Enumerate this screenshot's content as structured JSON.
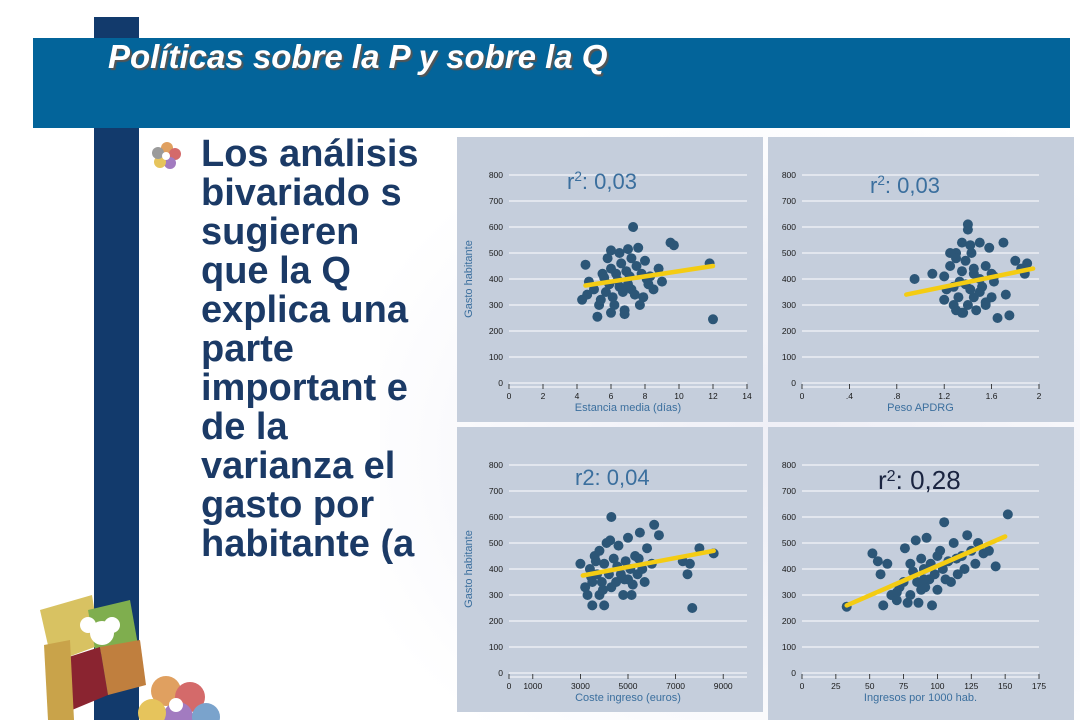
{
  "slide": {
    "title": "Políticas sobre la P y sobre la Q",
    "body": "Los análisis bivariado s sugieren que la Q explica una parte important e de la varianza el gasto por habitante (a"
  },
  "colors": {
    "header": "#03649a",
    "sidebar": "#123a6c",
    "panel": "#c5cedc",
    "point": "#2c5677",
    "fit": "#f4cc13"
  },
  "chart_data": [
    {
      "type": "scatter",
      "title": "r²: 0,03",
      "xlabel": "Estancia media (días)",
      "ylabel": "Gasto habitante",
      "xlim": [
        0,
        14
      ],
      "ylim": [
        0,
        800
      ],
      "xticks": [
        "0",
        "2",
        "4",
        "6",
        "8",
        "10",
        "12",
        "14"
      ],
      "yticks": [
        "0",
        "100",
        "200",
        "300",
        "400",
        "500",
        "600",
        "700",
        "800"
      ],
      "grid": true,
      "fit": {
        "x": [
          4.5,
          12.0
        ],
        "y": [
          375,
          450
        ]
      },
      "points": {
        "x": [
          4.3,
          4.5,
          4.6,
          4.7,
          5.0,
          5.2,
          5.3,
          5.5,
          5.6,
          5.7,
          5.8,
          5.9,
          6.0,
          6.0,
          6.1,
          6.2,
          6.3,
          6.4,
          6.5,
          6.5,
          6.6,
          6.7,
          6.8,
          6.9,
          7.0,
          7.0,
          7.1,
          7.2,
          7.3,
          7.4,
          7.5,
          7.6,
          7.7,
          7.8,
          7.9,
          8.0,
          8.1,
          8.3,
          8.5,
          8.8,
          9.0,
          9.5,
          9.7,
          11.8,
          12.0,
          5.4,
          6.8,
          7.2,
          6.0,
          8.2
        ],
        "y": [
          320,
          455,
          340,
          390,
          360,
          255,
          300,
          420,
          405,
          350,
          480,
          380,
          440,
          510,
          330,
          300,
          420,
          395,
          500,
          370,
          460,
          350,
          280,
          430,
          380,
          515,
          410,
          360,
          600,
          340,
          450,
          520,
          300,
          420,
          330,
          470,
          400,
          410,
          360,
          440,
          390,
          540,
          530,
          460,
          245,
          320,
          265,
          480,
          270,
          380
        ]
      }
    },
    {
      "type": "scatter",
      "title": "r²: 0,03",
      "xlabel": "Peso APDRG",
      "ylabel": "",
      "xlim": [
        0,
        2
      ],
      "ylim": [
        0,
        800
      ],
      "xticks": [
        "0",
        ".4",
        ".8",
        "1.2",
        "1.6",
        "2"
      ],
      "yticks": [
        "0",
        "100",
        "200",
        "300",
        "400",
        "500",
        "600",
        "700",
        "800"
      ],
      "grid": true,
      "fit": {
        "x": [
          0.88,
          1.95
        ],
        "y": [
          340,
          440
        ]
      },
      "points": {
        "x": [
          0.95,
          1.1,
          1.2,
          1.22,
          1.25,
          1.28,
          1.3,
          1.3,
          1.32,
          1.33,
          1.35,
          1.35,
          1.36,
          1.38,
          1.38,
          1.4,
          1.4,
          1.42,
          1.43,
          1.45,
          1.45,
          1.47,
          1.5,
          1.5,
          1.52,
          1.55,
          1.55,
          1.58,
          1.6,
          1.62,
          1.65,
          1.7,
          1.72,
          1.75,
          1.8,
          1.85,
          1.88,
          1.9,
          1.2,
          1.3,
          1.4,
          1.5,
          1.6,
          1.25,
          1.35,
          1.45,
          1.55,
          1.28,
          1.42,
          1.62
        ],
        "y": [
          400,
          420,
          410,
          360,
          450,
          300,
          280,
          500,
          330,
          390,
          540,
          430,
          270,
          380,
          470,
          610,
          300,
          360,
          500,
          420,
          330,
          280,
          540,
          400,
          370,
          450,
          300,
          520,
          330,
          410,
          250,
          540,
          340,
          260,
          470,
          440,
          420,
          460,
          320,
          480,
          590,
          350,
          420,
          500,
          270,
          440,
          310,
          370,
          530,
          390
        ]
      }
    },
    {
      "type": "scatter",
      "title": "r2: 0,04",
      "xlabel": "Coste ingreso (euros)",
      "ylabel": "Gasto habitante",
      "xlim": [
        0,
        10000
      ],
      "ylim": [
        0,
        800
      ],
      "xticks": [
        "0",
        "1000",
        "3000",
        "5000",
        "7000",
        "9000"
      ],
      "yticks": [
        "0",
        "100",
        "200",
        "300",
        "400",
        "500",
        "600",
        "700",
        "800"
      ],
      "grid": true,
      "fit": {
        "x": [
          3100,
          8600
        ],
        "y": [
          375,
          470
        ]
      },
      "points": {
        "x": [
          3000,
          3200,
          3300,
          3400,
          3500,
          3500,
          3600,
          3700,
          3800,
          3800,
          3900,
          4000,
          4000,
          4100,
          4200,
          4300,
          4300,
          4400,
          4500,
          4600,
          4700,
          4800,
          4900,
          5000,
          5000,
          5100,
          5200,
          5300,
          5400,
          5500,
          5600,
          5700,
          5800,
          6000,
          6100,
          6300,
          7300,
          7500,
          7600,
          7700,
          8000,
          8600,
          3450,
          3650,
          3950,
          4250,
          4550,
          4850,
          5150,
          5450
        ],
        "y": [
          420,
          330,
          300,
          400,
          350,
          260,
          450,
          380,
          300,
          470,
          350,
          420,
          260,
          500,
          380,
          330,
          600,
          440,
          350,
          490,
          380,
          300,
          430,
          360,
          520,
          400,
          340,
          450,
          380,
          540,
          400,
          350,
          480,
          420,
          570,
          530,
          430,
          380,
          420,
          250,
          480,
          460,
          370,
          430,
          320,
          510,
          410,
          360,
          300,
          440
        ]
      }
    },
    {
      "type": "scatter",
      "title": "r²: 0,28",
      "xlabel": "Ingresos por 1000 hab.",
      "ylabel": "",
      "xlim": [
        0,
        175
      ],
      "ylim": [
        0,
        800
      ],
      "xticks": [
        "0",
        "25",
        "50",
        "75",
        "100",
        "125",
        "150",
        "175"
      ],
      "yticks": [
        "0",
        "100",
        "200",
        "300",
        "400",
        "500",
        "600",
        "700",
        "800"
      ],
      "grid": true,
      "fit": {
        "x": [
          33,
          150
        ],
        "y": [
          260,
          525
        ]
      },
      "points": {
        "x": [
          33,
          52,
          56,
          58,
          60,
          63,
          66,
          70,
          72,
          75,
          76,
          78,
          80,
          80,
          82,
          84,
          85,
          86,
          88,
          88,
          90,
          91,
          92,
          94,
          95,
          96,
          98,
          100,
          100,
          102,
          104,
          105,
          106,
          108,
          110,
          112,
          114,
          115,
          118,
          120,
          122,
          125,
          128,
          130,
          134,
          138,
          143,
          152,
          70,
          90
        ],
        "y": [
          255,
          460,
          430,
          380,
          260,
          420,
          300,
          280,
          330,
          350,
          480,
          270,
          300,
          420,
          390,
          510,
          350,
          270,
          440,
          320,
          400,
          330,
          520,
          360,
          420,
          260,
          380,
          450,
          320,
          470,
          400,
          580,
          360,
          430,
          350,
          500,
          440,
          380,
          450,
          400,
          530,
          470,
          420,
          500,
          460,
          470,
          410,
          610,
          310,
          360
        ]
      }
    }
  ]
}
